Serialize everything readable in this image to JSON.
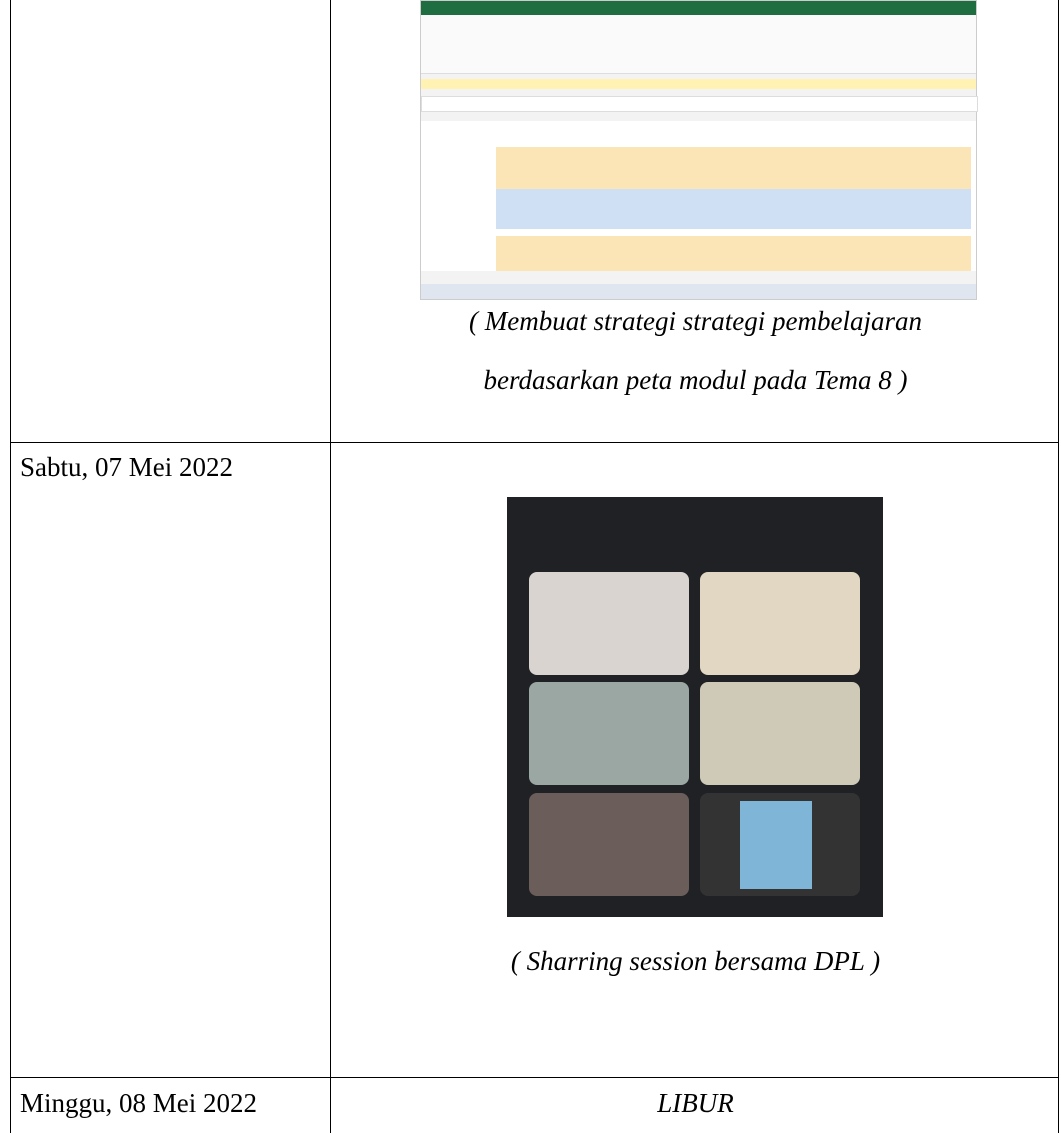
{
  "rows": [
    {
      "caption_lines": [
        "( Membuat strategi strategi pembelajaran",
        "berdasarkan peta modul pada Tema 8  )"
      ]
    },
    {
      "date": "Sabtu, 07 Mei 2022",
      "caption": "( Sharring session bersama DPL )"
    },
    {
      "date": "Minggu, 08 Mei 2022",
      "text": "LIBUR"
    }
  ]
}
